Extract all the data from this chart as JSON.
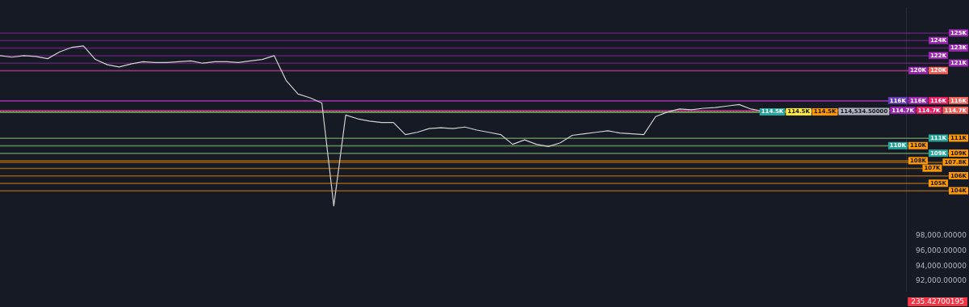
{
  "chart_data": {
    "type": "line",
    "categories": [
      null,
      null,
      null,
      null,
      null,
      null,
      null,
      null,
      null,
      null,
      null,
      null,
      null,
      null,
      null,
      null,
      null,
      null,
      null,
      null,
      null,
      null,
      null,
      null,
      null,
      null,
      null,
      null,
      null,
      null,
      null,
      null,
      null,
      null,
      null,
      null,
      null,
      null,
      null,
      null,
      null,
      null,
      null,
      null,
      null,
      null,
      null,
      null,
      null,
      null,
      null,
      null,
      null,
      null,
      null,
      null,
      null,
      null,
      null,
      null,
      null,
      null,
      null,
      null,
      null,
      null,
      null,
      null,
      null,
      null,
      null,
      null,
      null,
      null,
      null,
      null,
      null
    ],
    "series": [
      {
        "color": "#d0d0d0",
        "values": [
          122000,
          121800,
          122000,
          121900,
          121600,
          122500,
          123100,
          123300,
          121500,
          120800,
          120500,
          120900,
          121200,
          121100,
          121100,
          121200,
          121300,
          121000,
          121200,
          121200,
          121100,
          121300,
          121500,
          122000,
          118700,
          116900,
          116400,
          115700,
          102000,
          114100,
          113600,
          113300,
          113100,
          113100,
          111500,
          111800,
          112300,
          112400,
          112300,
          112500,
          112100,
          111800,
          111500,
          110200,
          110800,
          110200,
          109900,
          110400,
          111400,
          111600,
          111800,
          112000,
          111700,
          111600,
          111500,
          113900,
          114500,
          114900,
          114800,
          115000,
          115100,
          115300,
          115500,
          114900,
          114600,
          null,
          null,
          null,
          null,
          null,
          null,
          null,
          null,
          null,
          null,
          null,
          null
        ]
      }
    ],
    "ylim": [
      90700,
      128400
    ],
    "yticks": [
      {
        "value": 92000,
        "label": "92,000.00000"
      },
      {
        "value": 94000,
        "label": "94,000.00000"
      },
      {
        "value": 96000,
        "label": "96,000.00000"
      },
      {
        "value": 98000,
        "label": "98,000.00000"
      }
    ],
    "tick_labels": "y",
    "marker": "none",
    "grid": false,
    "legend": false,
    "ref_lines": [
      {
        "axis": "y",
        "value": 125000,
        "label": "125K",
        "color": "#9c27b0"
      },
      {
        "axis": "y",
        "value": 124000,
        "label": "124K",
        "color": "#9c27b0"
      },
      {
        "axis": "y",
        "value": 123000,
        "label": "123K",
        "color": "#9c27b0"
      },
      {
        "axis": "y",
        "value": 122000,
        "label": "122K",
        "color": "#9c27b0"
      },
      {
        "axis": "y",
        "value": 121000,
        "label": "121K",
        "color": "#9c27b0"
      },
      {
        "axis": "y",
        "value": 120000,
        "label": "120K",
        "color": "#f2605a"
      },
      {
        "axis": "y",
        "value": 120000,
        "label": "120K",
        "color": "#9c27b0"
      },
      {
        "axis": "y",
        "value": 116000,
        "label": "116K",
        "color": "#f2605a"
      },
      {
        "axis": "y",
        "value": 116000,
        "label": "116K",
        "color": "#e91e63"
      },
      {
        "axis": "y",
        "value": 116000,
        "label": "116K",
        "color": "#9c27b0"
      },
      {
        "axis": "y",
        "value": 116000,
        "label": "116K",
        "color": "#673ab7"
      },
      {
        "axis": "y",
        "value": 114700,
        "label": "114.7K",
        "color": "#f2605a"
      },
      {
        "axis": "y",
        "value": 114700,
        "label": "114.7K",
        "color": "#e91e63"
      },
      {
        "axis": "y",
        "value": 114700,
        "label": "114.7K",
        "color": "#9c27b0"
      },
      {
        "axis": "y",
        "value": 114534.5,
        "label": "114,534.50000",
        "color": "#b2b5be",
        "line_style": "dotted"
      },
      {
        "axis": "y",
        "value": 114500,
        "label": "114.5K",
        "color": "#ff9800"
      },
      {
        "axis": "y",
        "value": 114500,
        "label": "114.5K",
        "color": "#ffeb3b"
      },
      {
        "axis": "y",
        "value": 114500,
        "label": "114.5K",
        "color": "#26a69a"
      },
      {
        "axis": "y",
        "value": 111000,
        "label": "111K",
        "color": "#ff9800"
      },
      {
        "axis": "y",
        "value": 111000,
        "label": "111K",
        "color": "#26a69a"
      },
      {
        "axis": "y",
        "value": 110000,
        "label": "110K",
        "color": "#ff9800"
      },
      {
        "axis": "y",
        "value": 110000,
        "label": "110K",
        "color": "#26a69a"
      },
      {
        "axis": "y",
        "value": 109000,
        "label": "109K",
        "color": "#ff9800"
      },
      {
        "axis": "y",
        "value": 109000,
        "label": "109K",
        "color": "#26a69a"
      },
      {
        "axis": "y",
        "value": 108000,
        "label": "108K",
        "color": "#ff9800"
      },
      {
        "axis": "y",
        "value": 107800,
        "label": "107.8K",
        "color": "#ff9800"
      },
      {
        "axis": "y",
        "value": 107000,
        "label": "107K",
        "color": "#ff9800"
      },
      {
        "axis": "y",
        "value": 106000,
        "label": "106K",
        "color": "#ff9800"
      },
      {
        "axis": "y",
        "value": 105000,
        "label": "105K",
        "color": "#ff9800"
      },
      {
        "axis": "y",
        "value": 104000,
        "label": "104K",
        "color": "#ff9800"
      }
    ],
    "annotations": [
      "235.42700195"
    ]
  }
}
